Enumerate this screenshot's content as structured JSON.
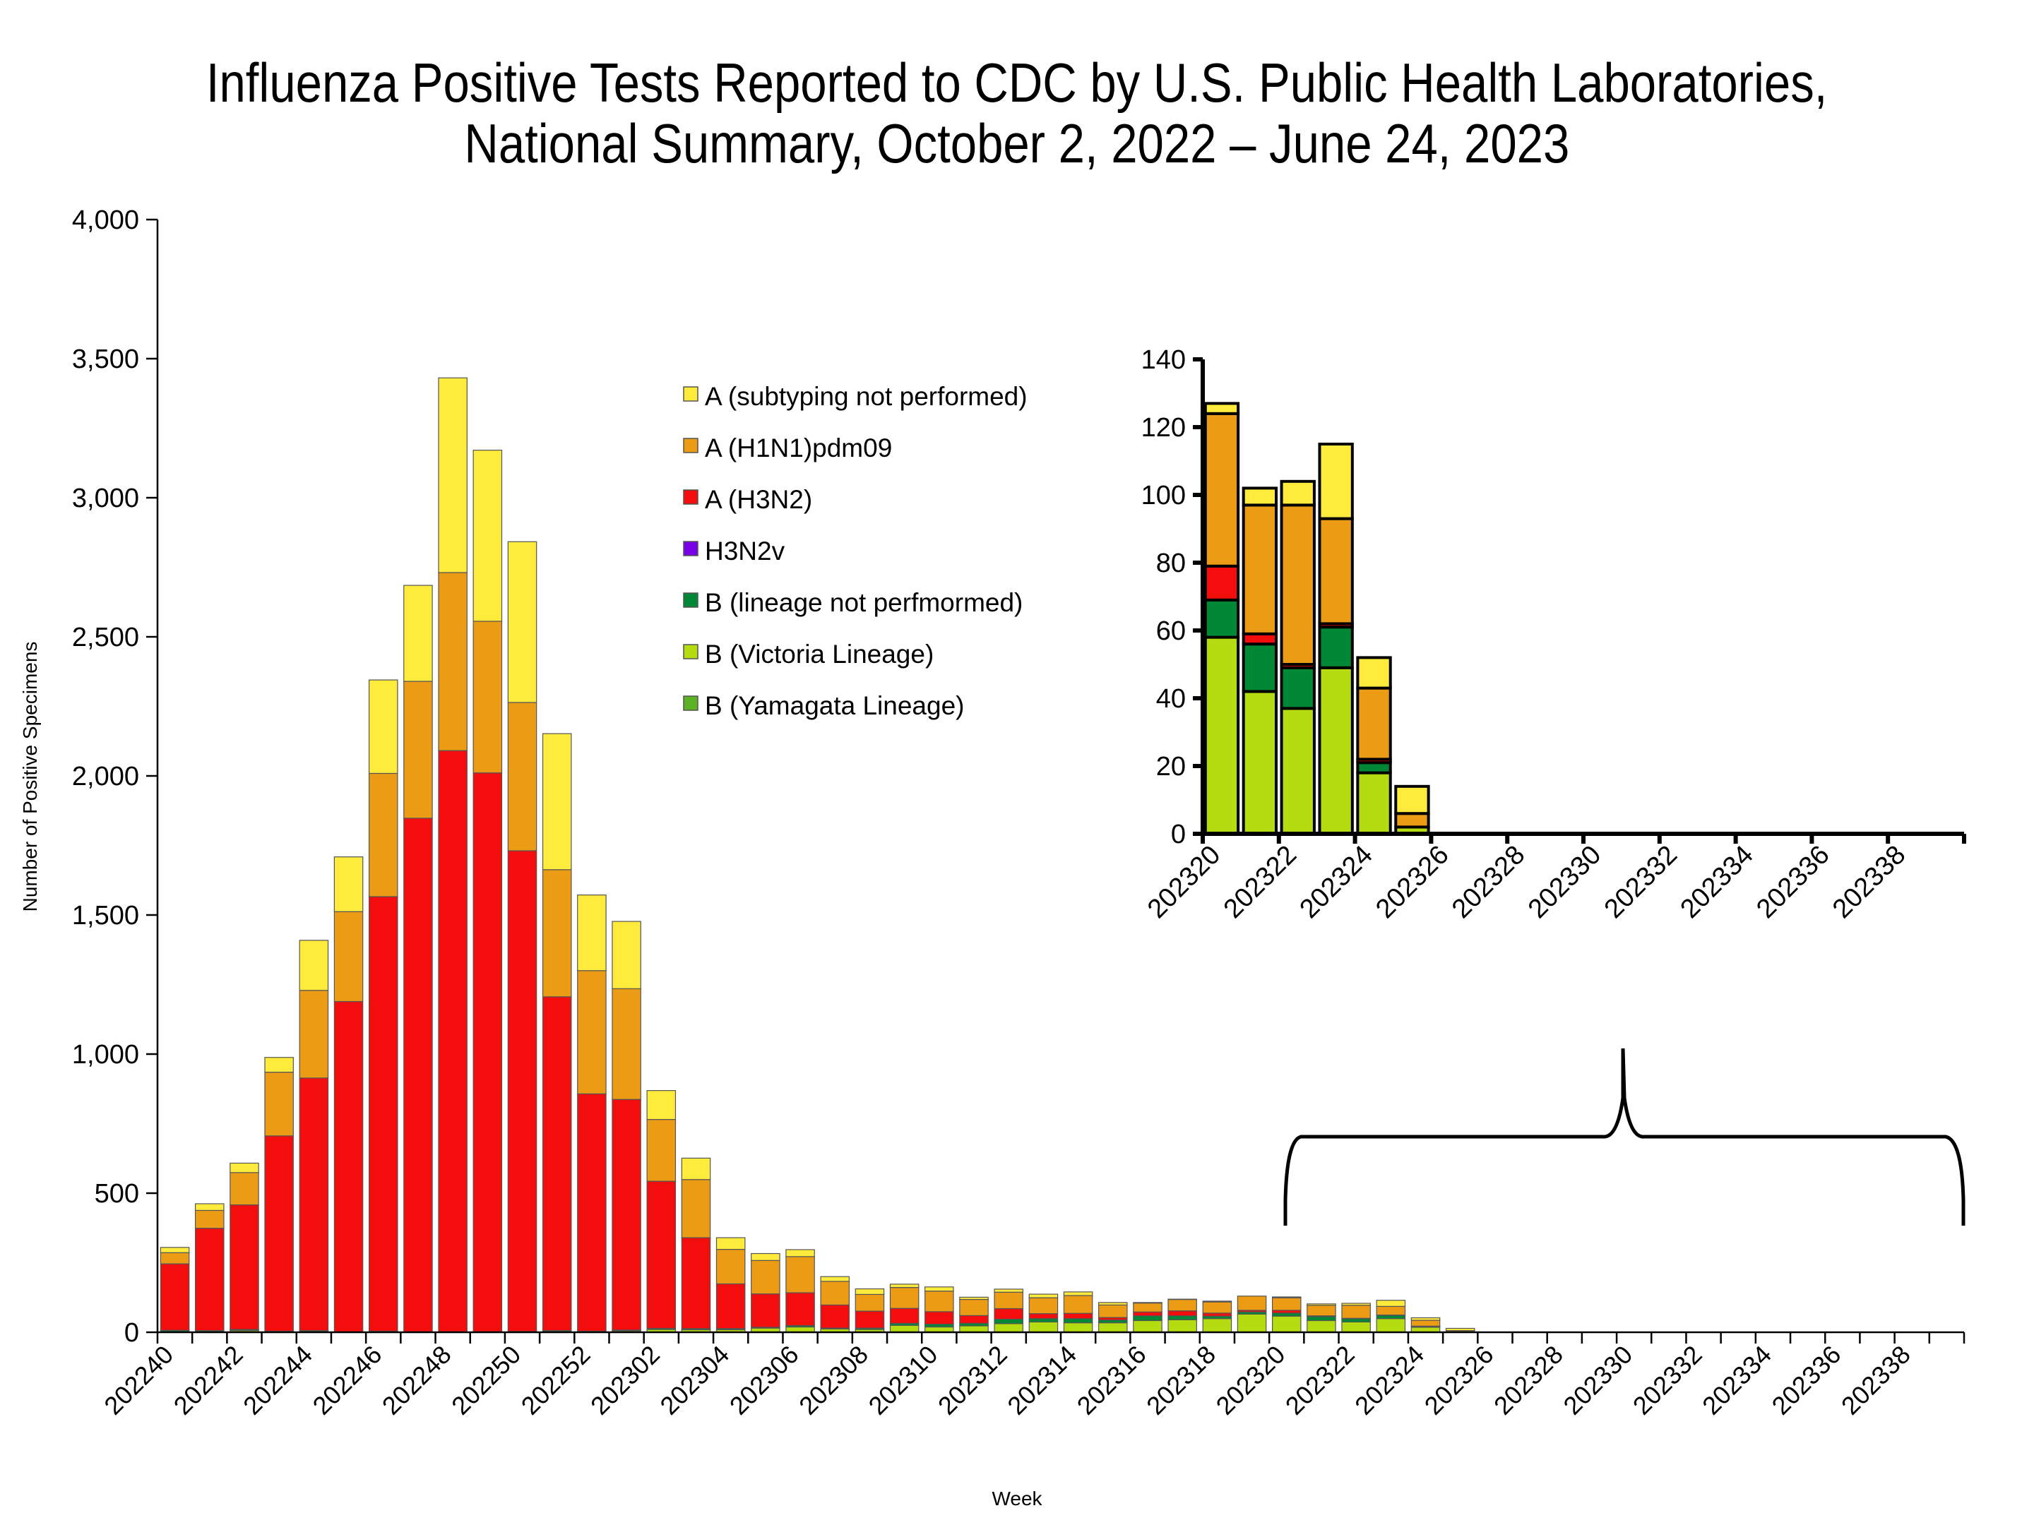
{
  "title_lines": [
    "Influenza Positive Tests Reported to CDC by U.S. Public Health Laboratories,",
    "National Summary, October 2, 2022 – June 24, 2023"
  ],
  "chart_data": [
    {
      "id": "main",
      "type": "bar",
      "stacked": true,
      "title": "Influenza Positive Tests Reported to CDC by U.S. Public Health Laboratories, National Summary, October 2, 2022 – June 24, 2023",
      "xlabel": "Week",
      "ylabel": "Number of Positive Specimens",
      "ylim": [
        0,
        4000
      ],
      "yticks": [
        0,
        500,
        1000,
        1500,
        2000,
        2500,
        3000,
        3500,
        4000
      ],
      "ytick_labels": [
        "0",
        "500",
        "1,000",
        "1,500",
        "2,000",
        "2,500",
        "3,000",
        "3,500",
        "4,000"
      ],
      "grid": false,
      "legend_position": "top-center",
      "categories": [
        "202240",
        "202241",
        "202242",
        "202243",
        "202244",
        "202245",
        "202246",
        "202247",
        "202248",
        "202249",
        "202250",
        "202251",
        "202252",
        "202301",
        "202302",
        "202303",
        "202304",
        "202305",
        "202306",
        "202307",
        "202308",
        "202309",
        "202310",
        "202311",
        "202312",
        "202313",
        "202314",
        "202315",
        "202316",
        "202317",
        "202318",
        "202319",
        "202320",
        "202321",
        "202322",
        "202323",
        "202324",
        "202325",
        "202326",
        "202327",
        "202328",
        "202329",
        "202330",
        "202331",
        "202332",
        "202333",
        "202334",
        "202335",
        "202336",
        "202337",
        "202338",
        "202339"
      ],
      "xtick_labels": [
        "202240",
        "202242",
        "202244",
        "202246",
        "202248",
        "202250",
        "202252",
        "202302",
        "202304",
        "202306",
        "202308",
        "202310",
        "202312",
        "202314",
        "202316",
        "202318",
        "202320",
        "202322",
        "202324",
        "202326",
        "202328",
        "202330",
        "202332",
        "202334",
        "202336",
        "202338"
      ],
      "series": [
        {
          "name": "B (Yamagata Lineage)",
          "color": "#5BB224",
          "values": [
            0,
            0,
            0,
            0,
            0,
            0,
            0,
            0,
            0,
            0,
            0,
            0,
            0,
            0,
            0,
            0,
            0,
            0,
            0,
            0,
            0,
            0,
            0,
            0,
            0,
            0,
            0,
            0,
            0,
            0,
            0,
            0,
            0,
            0,
            0,
            0,
            0,
            0,
            0,
            0,
            0,
            0,
            0,
            0,
            0,
            0,
            0,
            0,
            0,
            0,
            0,
            0
          ]
        },
        {
          "name": "B (Victoria Lineage)",
          "color": "#B5DC10",
          "values": [
            2,
            2,
            6,
            2,
            2,
            1,
            2,
            1,
            1,
            1,
            2,
            2,
            3,
            5,
            10,
            9,
            9,
            15,
            19,
            12,
            10,
            25,
            19,
            23,
            31,
            37,
            34,
            34,
            42,
            45,
            49,
            65,
            58,
            42,
            37,
            49,
            18,
            2,
            0,
            0,
            0,
            0,
            0,
            0,
            0,
            0,
            0,
            0,
            0,
            0,
            0,
            0
          ]
        },
        {
          "name": "B (lineage not perfmormed)",
          "color": "#008837",
          "values": [
            5,
            4,
            4,
            2,
            4,
            1,
            2,
            1,
            1,
            1,
            1,
            4,
            1,
            3,
            4,
            4,
            4,
            3,
            5,
            3,
            5,
            7,
            10,
            9,
            16,
            12,
            15,
            10,
            17,
            14,
            9,
            8,
            11,
            14,
            12,
            12,
            3,
            0,
            0,
            0,
            0,
            0,
            0,
            0,
            0,
            0,
            0,
            0,
            0,
            0,
            0,
            0
          ]
        },
        {
          "name": "H3N2v",
          "color": "#7A00E6",
          "values": [
            0,
            0,
            0,
            0,
            0,
            0,
            0,
            0,
            0,
            0,
            0,
            0,
            0,
            0,
            0,
            0,
            0,
            0,
            0,
            0,
            0,
            0,
            0,
            0,
            0,
            0,
            0,
            0,
            0,
            0,
            0,
            0,
            0,
            0,
            0,
            0,
            0,
            0,
            0,
            0,
            0,
            0,
            0,
            0,
            0,
            0,
            0,
            0,
            0,
            0,
            0,
            0
          ]
        },
        {
          "name": "A (H3N2)",
          "color": "#F40D0D",
          "values": [
            239,
            368,
            448,
            702,
            908,
            1187,
            1562,
            1846,
            2089,
            2009,
            1728,
            1200,
            853,
            829,
            529,
            327,
            161,
            120,
            118,
            83,
            61,
            54,
            45,
            28,
            38,
            18,
            19,
            9,
            14,
            18,
            11,
            6,
            10,
            3,
            1,
            1,
            1,
            0,
            0,
            0,
            0,
            0,
            0,
            0,
            0,
            0,
            0,
            0,
            0,
            0,
            0,
            0
          ]
        },
        {
          "name": "A (H1N1)pdm09",
          "color": "#EC9C14",
          "values": [
            40,
            64,
            116,
            229,
            315,
            323,
            443,
            492,
            640,
            545,
            533,
            457,
            443,
            398,
            222,
            209,
            124,
            120,
            130,
            85,
            60,
            75,
            74,
            58,
            59,
            57,
            64,
            45,
            32,
            41,
            40,
            51,
            45,
            38,
            47,
            31,
            21,
            4,
            0,
            0,
            0,
            0,
            0,
            0,
            0,
            0,
            0,
            0,
            0,
            0,
            0,
            0
          ]
        },
        {
          "name": "A (subtyping not performed)",
          "color": "#FFEB3B",
          "values": [
            19,
            24,
            34,
            53,
            180,
            197,
            336,
            345,
            700,
            615,
            578,
            489,
            272,
            242,
            104,
            77,
            42,
            25,
            25,
            17,
            20,
            12,
            15,
            8,
            11,
            13,
            13,
            9,
            2,
            1,
            3,
            0,
            3,
            5,
            7,
            22,
            9,
            8,
            0,
            0,
            0,
            0,
            0,
            0,
            0,
            0,
            0,
            0,
            0,
            0,
            0,
            0
          ]
        }
      ]
    },
    {
      "id": "inset",
      "type": "bar",
      "stacked": true,
      "title": "",
      "xlabel": "",
      "ylabel": "",
      "ylim": [
        0,
        140
      ],
      "yticks": [
        0,
        20,
        40,
        60,
        80,
        100,
        120,
        140
      ],
      "ytick_labels": [
        "0",
        "20",
        "40",
        "60",
        "80",
        "100",
        "120",
        "140"
      ],
      "grid": false,
      "categories": [
        "202320",
        "202321",
        "202322",
        "202323",
        "202324",
        "202325",
        "202326",
        "202327",
        "202328",
        "202329",
        "202330",
        "202331",
        "202332",
        "202333",
        "202334",
        "202335",
        "202336",
        "202337",
        "202338",
        "202339"
      ],
      "xtick_labels": [
        "202320",
        "202322",
        "202324",
        "202326",
        "202328",
        "202330",
        "202332",
        "202334",
        "202336",
        "202338"
      ],
      "series": [
        {
          "name": "B (Yamagata Lineage)",
          "color": "#5BB224",
          "values": [
            0,
            0,
            0,
            0,
            0,
            0,
            0,
            0,
            0,
            0,
            0,
            0,
            0,
            0,
            0,
            0,
            0,
            0,
            0,
            0
          ]
        },
        {
          "name": "B (Victoria Lineage)",
          "color": "#B5DC10",
          "values": [
            58,
            42,
            37,
            49,
            18,
            2,
            0,
            0,
            0,
            0,
            0,
            0,
            0,
            0,
            0,
            0,
            0,
            0,
            0,
            0
          ]
        },
        {
          "name": "B (lineage not perfmormed)",
          "color": "#008837",
          "values": [
            11,
            14,
            12,
            12,
            3,
            0,
            0,
            0,
            0,
            0,
            0,
            0,
            0,
            0,
            0,
            0,
            0,
            0,
            0,
            0
          ]
        },
        {
          "name": "H3N2v",
          "color": "#7A00E6",
          "values": [
            0,
            0,
            0,
            0,
            0,
            0,
            0,
            0,
            0,
            0,
            0,
            0,
            0,
            0,
            0,
            0,
            0,
            0,
            0,
            0
          ]
        },
        {
          "name": "A (H3N2)",
          "color": "#F40D0D",
          "values": [
            10,
            3,
            1,
            1,
            1,
            0,
            0,
            0,
            0,
            0,
            0,
            0,
            0,
            0,
            0,
            0,
            0,
            0,
            0,
            0
          ]
        },
        {
          "name": "A (H1N1)pdm09",
          "color": "#EC9C14",
          "values": [
            45,
            38,
            47,
            31,
            21,
            4,
            0,
            0,
            0,
            0,
            0,
            0,
            0,
            0,
            0,
            0,
            0,
            0,
            0,
            0
          ]
        },
        {
          "name": "A (subtyping not performed)",
          "color": "#FFEB3B",
          "values": [
            3,
            5,
            7,
            22,
            9,
            8,
            0,
            0,
            0,
            0,
            0,
            0,
            0,
            0,
            0,
            0,
            0,
            0,
            0,
            0
          ]
        }
      ]
    }
  ],
  "legend": [
    {
      "label": "A (subtyping not performed)",
      "color": "#FFEB3B"
    },
    {
      "label": "A (H1N1)pdm09",
      "color": "#EC9C14"
    },
    {
      "label": "A (H3N2)",
      "color": "#F40D0D"
    },
    {
      "label": "H3N2v",
      "color": "#7A00E6"
    },
    {
      "label": "B (lineage not perfmormed)",
      "color": "#008837"
    },
    {
      "label": "B (Victoria Lineage)",
      "color": "#B5DC10"
    },
    {
      "label": "B (Yamagata Lineage)",
      "color": "#5BB224"
    }
  ],
  "annotation": {
    "description": "curly brace linking inset to weeks 202320–202339"
  }
}
